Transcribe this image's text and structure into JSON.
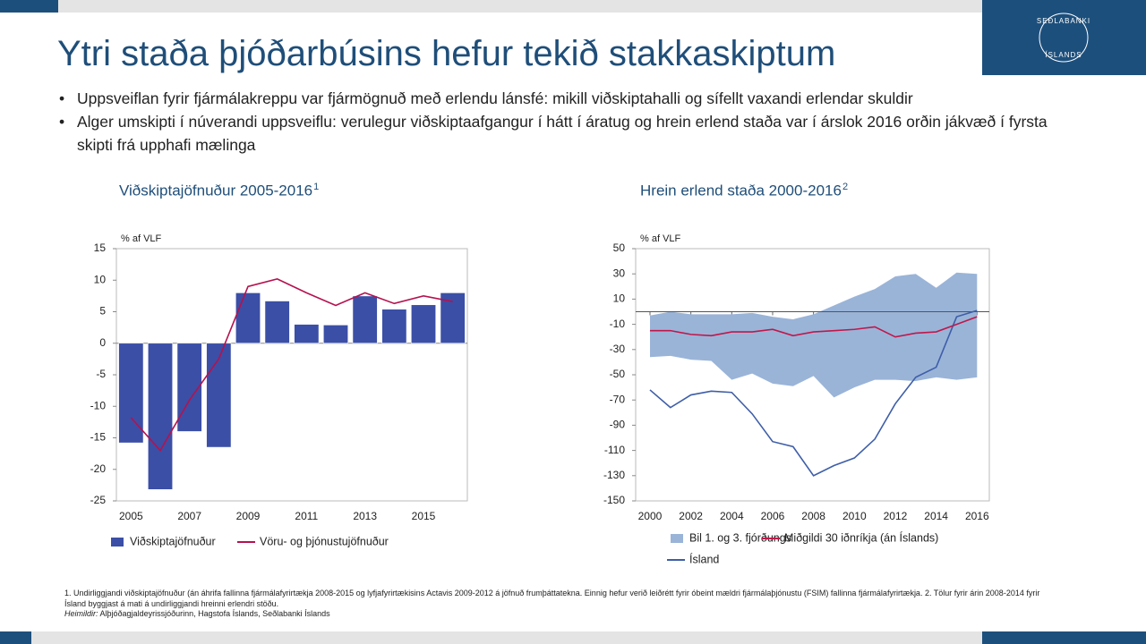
{
  "title": "Ytri staða þjóðarbúsins hefur tekið stakkaskiptum",
  "logo": {
    "top": "SEÐLABANKI",
    "bottom": "ÍSLANDS"
  },
  "bullets": [
    "Uppsveiflan fyrir fjármálakreppu var fjármögnuð með erlendu lánsfé: mikill viðskiptahalli og sífellt vaxandi erlendar skuldir",
    "Alger umskipti í núverandi uppsveiflu: verulegur viðskiptaafgangur í hátt í áratug og hrein erlend staða var í árslok 2016 orðin jákvæð í fyrsta skipti frá upphafi mælinga"
  ],
  "footnotes": {
    "text": "1. Undirliggjandi viðskiptajöfnuður (án áhrifa fallinna fjármálafyrirtækja 2008-2015 og lyfjafyrirtækisins Actavis 2009-2012 á jöfnuð frumþáttatekna. Einnig hefur verið leiðrétt fyrir óbeint mældri fjármálaþjónustu (FSIM) fallinna fjármálafyrirtækja. 2. Tölur fyrir árin 2008-2014 fyrir Ísland byggjast á mati á undirliggjandi hreinni erlendri stöðu.",
    "sources_label": "Heimildir:",
    "sources": "Alþjóðagjaldeyrissjóðurinn, Hagstofa Íslands, Seðlabanki Íslands"
  },
  "chart_data": [
    {
      "type": "bar",
      "title": "Viðskiptajöfnuður 2005-2016",
      "title_note": "1",
      "y_label": "% af VLF",
      "categories": [
        "2005",
        null,
        "2007",
        null,
        "2009",
        null,
        "2011",
        null,
        "2013",
        null,
        "2015",
        null
      ],
      "series": [
        {
          "name": "Viðskiptajöfnuður",
          "type": "bar",
          "color": "#3b4fa6",
          "values": [
            -15.8,
            -23.2,
            -14,
            -16.5,
            8,
            6.7,
            3,
            2.9,
            7.5,
            5.4,
            6.1,
            8
          ]
        },
        {
          "name": "Vöru- og þjónustujöfnuður",
          "type": "line",
          "color": "#b5124e",
          "values": [
            -11.8,
            -17,
            -9,
            -2.5,
            9,
            10.2,
            8,
            6,
            8,
            6.3,
            7.5,
            6.6
          ]
        }
      ],
      "ylim": [
        -25,
        15
      ],
      "yticks": [
        -25,
        -20,
        -15,
        -10,
        -5,
        0,
        5,
        10,
        15
      ]
    },
    {
      "type": "line",
      "title": "Hrein erlend staða 2000-2016",
      "title_note": "2",
      "y_label": "% af VLF",
      "x": [
        2000,
        2001,
        2002,
        2003,
        2004,
        2005,
        2006,
        2007,
        2008,
        2009,
        2010,
        2011,
        2012,
        2013,
        2014,
        2015,
        2016
      ],
      "series": [
        {
          "name": "Bil 1. og 3. fjórðungs",
          "type": "band",
          "color": "#9ab4d8",
          "upper": [
            -3,
            0,
            -2,
            -2,
            -2,
            -1,
            -4,
            -6,
            -2,
            5,
            12,
            18,
            28,
            30,
            19,
            31,
            30
          ],
          "lower": [
            -36,
            -35,
            -38,
            -39,
            -54,
            -49,
            -57,
            -59,
            -51,
            -68,
            -60,
            -54,
            -54,
            -55,
            -52,
            -54,
            -52
          ]
        },
        {
          "name": "Ísland",
          "type": "line",
          "color": "#3e5ea8",
          "values": [
            -62,
            -76,
            -66,
            -63,
            -64,
            -81,
            -103,
            -107,
            -130,
            -122,
            -116,
            -101,
            -73,
            -52,
            -44,
            -4,
            1
          ]
        },
        {
          "name": "Miðgildi 30 iðnríkja (án Íslands)",
          "type": "line",
          "color": "#c0174a",
          "values": [
            -15,
            -15,
            -18,
            -19,
            -16,
            -16,
            -14,
            -19,
            -16,
            -15,
            -14,
            -12,
            -20,
            -17,
            -16,
            -10,
            -4
          ]
        }
      ],
      "xlim": [
        1999.3,
        2016.6
      ],
      "xticks": [
        2000,
        2002,
        2004,
        2006,
        2008,
        2010,
        2012,
        2014,
        2016
      ],
      "ylim": [
        -150,
        50
      ],
      "yticks": [
        -150,
        -130,
        -110,
        -90,
        -70,
        -50,
        -30,
        -10,
        10,
        30,
        50
      ]
    }
  ]
}
